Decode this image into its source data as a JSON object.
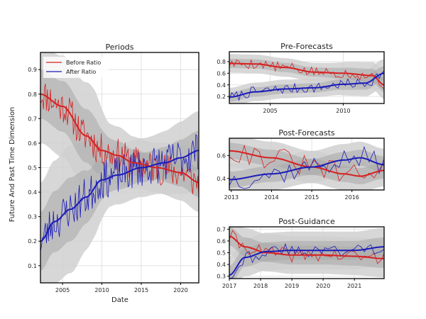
{
  "figure": {
    "ylabel": "Future And Past Time Dimension",
    "xlabel": "Date"
  },
  "colors": {
    "before": "#d62020",
    "after": "#1a1ab8",
    "band_outer": "#d0d0d0",
    "band_inner": "#a8a8a8",
    "grid": "#dcdcdc"
  },
  "chart_data": [
    {
      "id": "periods",
      "type": "line",
      "title": "Periods",
      "xlabel": "Date",
      "ylabel": "Future And Past Time Dimension",
      "xlim": [
        2002.2,
        2022.3
      ],
      "ylim": [
        0.03,
        0.97
      ],
      "xticks": [
        2005,
        2010,
        2015,
        2020
      ],
      "yticks": [
        0.1,
        0.2,
        0.3,
        0.4,
        0.5,
        0.6,
        0.7,
        0.8,
        0.9
      ],
      "legend": {
        "position": "top-left",
        "entries": [
          "Before Ratio",
          "After Ratio"
        ]
      },
      "grid": true,
      "series": [
        {
          "name": "Before Ratio",
          "trend": [
            [
              2002.2,
              0.8
            ],
            [
              2005,
              0.75
            ],
            [
              2008,
              0.63
            ],
            [
              2010,
              0.57
            ],
            [
              2012,
              0.55
            ],
            [
              2014,
              0.52
            ],
            [
              2017,
              0.5
            ],
            [
              2020,
              0.48
            ],
            [
              2022.3,
              0.44
            ]
          ],
          "band_half": [
            [
              2002.2,
              0.1
            ],
            [
              2009,
              0.11
            ],
            [
              2011,
              0.06
            ],
            [
              2016,
              0.05
            ],
            [
              2022.3,
              0.06
            ]
          ],
          "noise": 0.07,
          "samples": 160,
          "seed": 11
        },
        {
          "name": "After Ratio",
          "trend": [
            [
              2002.2,
              0.2
            ],
            [
              2004,
              0.28
            ],
            [
              2006,
              0.33
            ],
            [
              2008,
              0.38
            ],
            [
              2010,
              0.45
            ],
            [
              2012,
              0.47
            ],
            [
              2015,
              0.5
            ],
            [
              2018,
              0.52
            ],
            [
              2020,
              0.54
            ],
            [
              2022.3,
              0.57
            ]
          ],
          "band_half": [
            [
              2002.2,
              0.12
            ],
            [
              2006,
              0.13
            ],
            [
              2009,
              0.1
            ],
            [
              2011,
              0.06
            ],
            [
              2016,
              0.06
            ],
            [
              2022.3,
              0.08
            ]
          ],
          "noise": 0.08,
          "samples": 160,
          "seed": 23
        }
      ]
    },
    {
      "id": "pre",
      "type": "line",
      "title": "Pre-Forecasts",
      "xlim": [
        2002.2,
        2012.8
      ],
      "ylim": [
        0.08,
        0.97
      ],
      "xticks": [
        2005,
        2010
      ],
      "yticks": [
        0.2,
        0.4,
        0.6,
        0.8
      ],
      "grid": true,
      "series": [
        {
          "name": "Before Ratio",
          "trend": [
            [
              2002.2,
              0.77
            ],
            [
              2004,
              0.76
            ],
            [
              2006,
              0.7
            ],
            [
              2008,
              0.62
            ],
            [
              2010,
              0.6
            ],
            [
              2012,
              0.56
            ],
            [
              2012.8,
              0.4
            ]
          ],
          "band_half": [
            [
              2002.2,
              0.08
            ],
            [
              2008,
              0.08
            ],
            [
              2012.8,
              0.12
            ]
          ],
          "noise": 0.09,
          "samples": 65,
          "seed": 5
        },
        {
          "name": "After Ratio",
          "trend": [
            [
              2002.2,
              0.19
            ],
            [
              2004,
              0.28
            ],
            [
              2006,
              0.33
            ],
            [
              2008,
              0.35
            ],
            [
              2010,
              0.41
            ],
            [
              2011.5,
              0.43
            ],
            [
              2012.8,
              0.6
            ]
          ],
          "band_half": [
            [
              2002.2,
              0.08
            ],
            [
              2008,
              0.08
            ],
            [
              2012.8,
              0.12
            ]
          ],
          "noise": 0.09,
          "samples": 65,
          "seed": 7
        }
      ]
    },
    {
      "id": "post",
      "type": "line",
      "title": "Post-Forecasts",
      "xlim": [
        2012.95,
        2016.8
      ],
      "ylim": [
        0.3,
        0.75
      ],
      "xticks": [
        2013,
        2014,
        2015,
        2016
      ],
      "yticks": [
        0.4,
        0.6
      ],
      "grid": true,
      "series": [
        {
          "name": "Before Ratio",
          "trend": [
            [
              2012.95,
              0.64
            ],
            [
              2014,
              0.58
            ],
            [
              2015,
              0.5
            ],
            [
              2015.8,
              0.44
            ],
            [
              2016.2,
              0.42
            ],
            [
              2016.8,
              0.47
            ]
          ],
          "band_half": [
            [
              2012.95,
              0.07
            ],
            [
              2016.8,
              0.07
            ]
          ],
          "noise": 0.1,
          "samples": 32,
          "seed": 31
        },
        {
          "name": "After Ratio",
          "trend": [
            [
              2012.95,
              0.39
            ],
            [
              2014,
              0.44
            ],
            [
              2015,
              0.5
            ],
            [
              2015.8,
              0.56
            ],
            [
              2016.2,
              0.58
            ],
            [
              2016.8,
              0.52
            ]
          ],
          "band_half": [
            [
              2012.95,
              0.07
            ],
            [
              2016.8,
              0.07
            ]
          ],
          "noise": 0.1,
          "samples": 32,
          "seed": 37
        }
      ]
    },
    {
      "id": "guidance",
      "type": "line",
      "title": "Post-Guidance",
      "xlim": [
        2017,
        2021.95
      ],
      "ylim": [
        0.28,
        0.72
      ],
      "xticks": [
        2017,
        2018,
        2019,
        2020,
        2021
      ],
      "yticks": [
        0.3,
        0.4,
        0.5,
        0.6,
        0.7
      ],
      "grid": true,
      "series": [
        {
          "name": "Before Ratio",
          "trend": [
            [
              2017,
              0.64
            ],
            [
              2017.5,
              0.55
            ],
            [
              2018.2,
              0.5
            ],
            [
              2019,
              0.48
            ],
            [
              2020,
              0.48
            ],
            [
              2021,
              0.47
            ],
            [
              2021.95,
              0.45
            ]
          ],
          "band_half": [
            [
              2017,
              0.08
            ],
            [
              2021.95,
              0.08
            ]
          ],
          "noise": 0.06,
          "samples": 48,
          "seed": 41
        },
        {
          "name": "After Ratio",
          "trend": [
            [
              2017,
              0.31
            ],
            [
              2017.5,
              0.46
            ],
            [
              2018.2,
              0.51
            ],
            [
              2019,
              0.52
            ],
            [
              2020,
              0.52
            ],
            [
              2021,
              0.52
            ],
            [
              2021.95,
              0.55
            ]
          ],
          "band_half": [
            [
              2017,
              0.08
            ],
            [
              2021.95,
              0.08
            ]
          ],
          "noise": 0.06,
          "samples": 48,
          "seed": 43
        }
      ]
    }
  ]
}
